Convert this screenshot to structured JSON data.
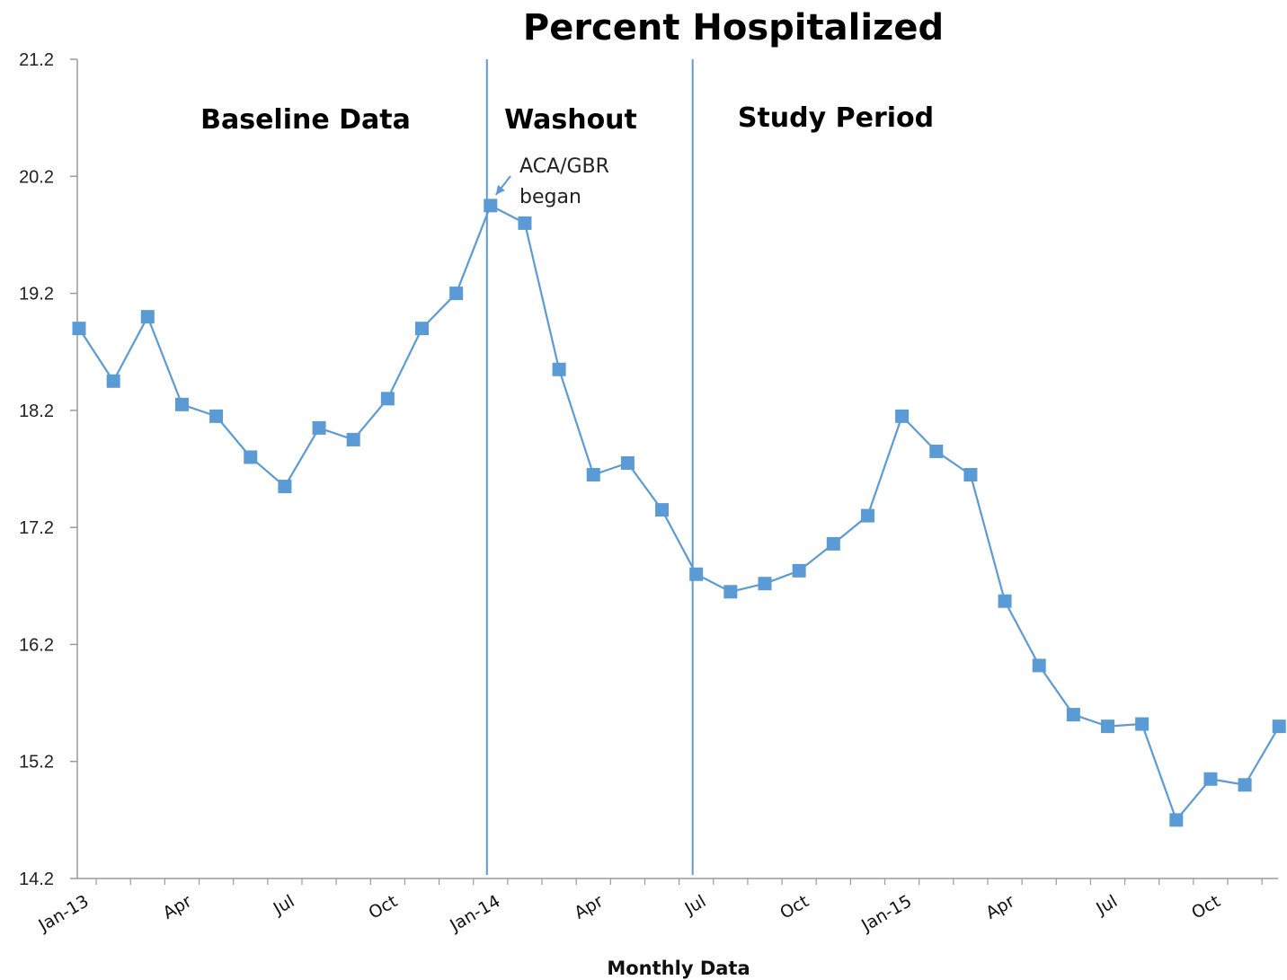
{
  "chart_data": {
    "type": "line",
    "title": "Percent Hospitalized",
    "xlabel": "Monthly Data",
    "ylabel": "",
    "ylim": [
      14.2,
      21.2
    ],
    "yticks": [
      "14.2",
      "15.2",
      "16.2",
      "17.2",
      "18.2",
      "19.2",
      "20.2",
      "21.2"
    ],
    "grid": false,
    "x": [
      "Jan-13",
      "Feb-13",
      "Mar-13",
      "Apr-13",
      "May-13",
      "Jun-13",
      "Jul-13",
      "Aug-13",
      "Sep-13",
      "Oct-13",
      "Nov-13",
      "Dec-13",
      "Jan-14",
      "Feb-14",
      "Mar-14",
      "Apr-14",
      "May-14",
      "Jun-14",
      "Jul-14",
      "Aug-14",
      "Sep-14",
      "Oct-14",
      "Nov-14",
      "Dec-14",
      "Jan-15",
      "Feb-15",
      "Mar-15",
      "Apr-15",
      "May-15",
      "Jun-15",
      "Jul-15",
      "Aug-15",
      "Sep-15",
      "Oct-15",
      "Nov-15",
      "Dec-15"
    ],
    "xtick_labels": [
      {
        "index": 0,
        "label": "Jan-13"
      },
      {
        "index": 3,
        "label": "Apr"
      },
      {
        "index": 6,
        "label": "Jul"
      },
      {
        "index": 9,
        "label": "Oct"
      },
      {
        "index": 12,
        "label": "Jan-14"
      },
      {
        "index": 15,
        "label": "Apr"
      },
      {
        "index": 18,
        "label": "Jul"
      },
      {
        "index": 21,
        "label": "Oct"
      },
      {
        "index": 24,
        "label": "Jan-15"
      },
      {
        "index": 27,
        "label": "Apr"
      },
      {
        "index": 30,
        "label": "Jul"
      },
      {
        "index": 33,
        "label": "Oct"
      }
    ],
    "series": [
      {
        "values": [
          18.9,
          18.45,
          19.0,
          18.25,
          18.15,
          17.8,
          17.55,
          18.05,
          17.95,
          18.3,
          18.9,
          19.2,
          19.95,
          19.8,
          18.55,
          17.65,
          17.75,
          17.35,
          16.8,
          16.65,
          16.72,
          16.83,
          17.06,
          17.3,
          18.15,
          17.85,
          17.65,
          16.57,
          16.02,
          15.6,
          15.5,
          15.52,
          14.7,
          15.05,
          15.0,
          15.5
        ],
        "color": "#5b9bd5"
      }
    ],
    "phase_dividers": [
      12,
      18
    ],
    "phases": [
      {
        "label": "Baseline Data"
      },
      {
        "label": "Washout"
      },
      {
        "label": "Study Period"
      }
    ],
    "annotation": {
      "lines": [
        "ACA/GBR",
        "began"
      ],
      "point_index": 12
    }
  }
}
